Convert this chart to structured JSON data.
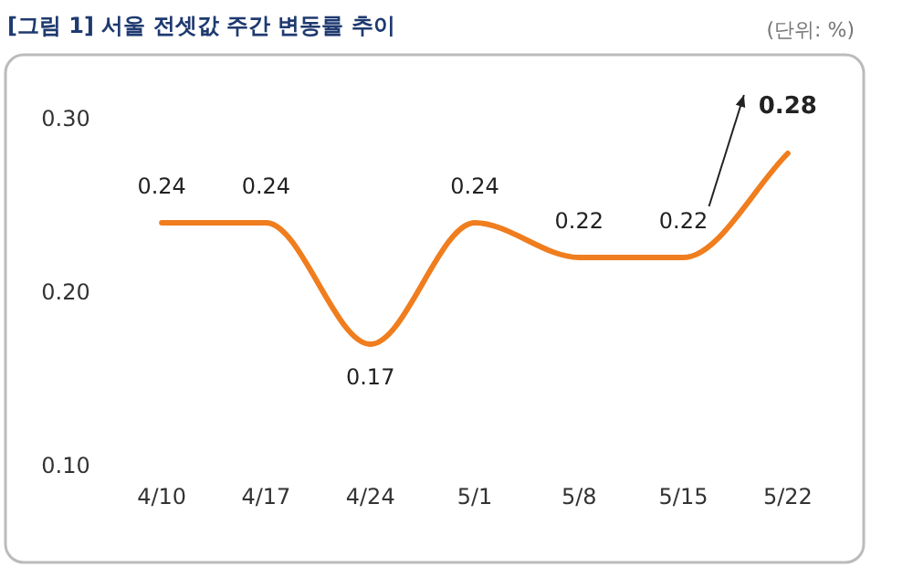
{
  "chart_data": {
    "type": "line",
    "title": "[그림 1] 서울 전셋값 주간 변동률 추이",
    "annotations": [
      "(단위: %)"
    ],
    "categories": [
      "4/10",
      "4/17",
      "4/24",
      "5/1",
      "5/8",
      "5/15",
      "5/22"
    ],
    "series": [
      {
        "color": "#f07d1e",
        "values": [
          0.24,
          0.24,
          0.17,
          0.24,
          0.22,
          0.22,
          0.28
        ]
      }
    ],
    "ylim": [
      0.1,
      0.3
    ],
    "yticks": [
      {
        "value": 0.1,
        "label": "0.10"
      },
      {
        "value": 0.2,
        "label": "0.20"
      },
      {
        "value": 0.3,
        "label": "0.30"
      }
    ],
    "data_labels": true,
    "grid": false,
    "marker": "none"
  }
}
